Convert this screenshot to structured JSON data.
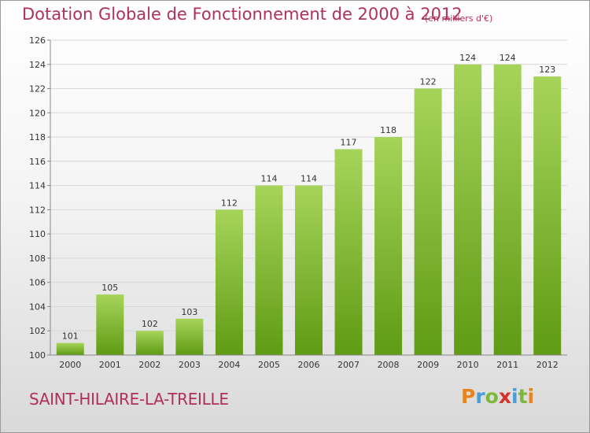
{
  "header": {
    "title": "Dotation Globale de Fonctionnement de 2000 à 2012",
    "unit": "(en milliers d'€)"
  },
  "footer": {
    "commune": "SAINT-HILAIRE-LA-TREILLE",
    "logo_text": "Proxiti"
  },
  "colors": {
    "title": "#b0305a",
    "bar_light": "#a6d45a",
    "bar_dark": "#5f9b14",
    "logo": [
      "#e8831e",
      "#4a9bd6",
      "#7cb83a",
      "#d2342b",
      "#4a9bd6",
      "#7cb83a",
      "#e8831e"
    ]
  },
  "chart_data": {
    "type": "bar",
    "categories": [
      "2000",
      "2001",
      "2002",
      "2003",
      "2004",
      "2005",
      "2006",
      "2007",
      "2008",
      "2009",
      "2010",
      "2011",
      "2012"
    ],
    "values": [
      101,
      105,
      102,
      103,
      112,
      114,
      114,
      117,
      118,
      122,
      124,
      124,
      123
    ],
    "ylim": [
      100,
      126
    ],
    "yticks": [
      100,
      102,
      104,
      106,
      108,
      110,
      112,
      114,
      116,
      118,
      120,
      122,
      124,
      126
    ],
    "grid": true,
    "title": "Dotation Globale de Fonctionnement de 2000 à 2012",
    "ylabel": "(en milliers d'€)",
    "xlabel": ""
  }
}
